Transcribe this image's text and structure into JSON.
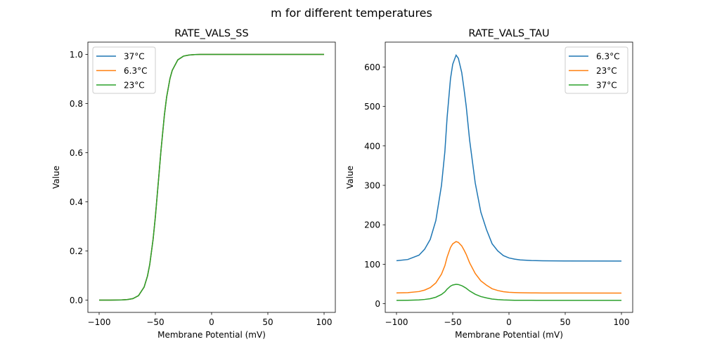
{
  "suptitle": "m for different temperatures",
  "colors": {
    "c0": "#1f77b4",
    "c1": "#ff7f0e",
    "c2": "#2ca02c"
  },
  "chart_data": [
    {
      "type": "line",
      "title": "RATE_VALS_SS",
      "xlabel": "Membrane Potential (mV)",
      "ylabel": "Value",
      "xlim": [
        -110,
        110
      ],
      "ylim": [
        -0.05,
        1.05
      ],
      "xticks": [
        -100,
        -50,
        0,
        50,
        100
      ],
      "yticks": [
        0.0,
        0.2,
        0.4,
        0.6,
        0.8,
        1.0
      ],
      "ytick_labels": [
        "0.0",
        "0.2",
        "0.4",
        "0.6",
        "0.8",
        "1.0"
      ],
      "grid": false,
      "legend_placement": "upper left",
      "x": [
        -100,
        -90,
        -80,
        -75,
        -70,
        -65,
        -60,
        -57,
        -55,
        -52,
        -50,
        -47,
        -45,
        -42,
        -40,
        -37,
        -35,
        -30,
        -25,
        -20,
        -15,
        -10,
        0,
        50,
        100
      ],
      "series": [
        {
          "name": "37°C",
          "color": "#1f77b4",
          "values": [
            0,
            0.0001,
            0.0007,
            0.002,
            0.006,
            0.018,
            0.053,
            0.098,
            0.145,
            0.248,
            0.339,
            0.5,
            0.609,
            0.752,
            0.826,
            0.902,
            0.935,
            0.978,
            0.993,
            0.9975,
            0.9992,
            0.9999,
            1,
            1,
            1
          ]
        },
        {
          "name": "6.3°C",
          "color": "#ff7f0e",
          "values": [
            0,
            0.0001,
            0.0007,
            0.002,
            0.006,
            0.018,
            0.053,
            0.098,
            0.145,
            0.248,
            0.339,
            0.5,
            0.609,
            0.752,
            0.826,
            0.902,
            0.935,
            0.978,
            0.993,
            0.9975,
            0.9992,
            0.9999,
            1,
            1,
            1
          ]
        },
        {
          "name": "23°C",
          "color": "#2ca02c",
          "values": [
            0,
            0.0001,
            0.0007,
            0.002,
            0.006,
            0.018,
            0.053,
            0.098,
            0.145,
            0.248,
            0.339,
            0.5,
            0.609,
            0.752,
            0.826,
            0.902,
            0.935,
            0.978,
            0.993,
            0.9975,
            0.9992,
            0.9999,
            1,
            1,
            1
          ]
        }
      ]
    },
    {
      "type": "line",
      "title": "RATE_VALS_TAU",
      "xlabel": "Membrane Potential (mV)",
      "ylabel": "Value",
      "xlim": [
        -110,
        110
      ],
      "ylim": [
        -22,
        663
      ],
      "xticks": [
        -100,
        -50,
        0,
        50,
        100
      ],
      "yticks": [
        0,
        100,
        200,
        300,
        400,
        500,
        600
      ],
      "ytick_labels": [
        "0",
        "100",
        "200",
        "300",
        "400",
        "500",
        "600"
      ],
      "grid": false,
      "legend_placement": "upper right",
      "x": [
        -100,
        -90,
        -80,
        -75,
        -70,
        -65,
        -60,
        -57,
        -55,
        -52,
        -50,
        -47,
        -45,
        -42,
        -40,
        -38,
        -35,
        -30,
        -25,
        -20,
        -15,
        -10,
        -5,
        0,
        5,
        10,
        20,
        30,
        50,
        100
      ],
      "series": [
        {
          "name": "6.3°C",
          "color": "#1f77b4",
          "values": [
            109,
            112,
            123,
            138,
            163,
            211,
            300,
            385,
            472,
            570,
            607,
            630,
            622,
            586,
            545,
            500,
            415,
            306,
            232,
            188,
            152,
            134,
            122,
            116,
            113,
            111,
            109.5,
            108.8,
            108.3,
            108
          ]
        },
        {
          "name": "23°C",
          "color": "#ff7f0e",
          "values": [
            27.3,
            28,
            30.8,
            34.5,
            40.8,
            52.8,
            75,
            96.3,
            118,
            142.5,
            151.8,
            157.5,
            155.5,
            146.5,
            136.3,
            125,
            103.8,
            76.5,
            58,
            47,
            38,
            33.5,
            30.5,
            29,
            28.3,
            27.8,
            27.4,
            27.2,
            27.1,
            27
          ]
        },
        {
          "name": "37°C",
          "color": "#2ca02c",
          "values": [
            8.5,
            8.8,
            9.6,
            10.8,
            12.7,
            16.5,
            23.4,
            30.1,
            36.9,
            44.5,
            47.4,
            49.2,
            48.6,
            45.8,
            42.6,
            39.1,
            32.4,
            23.9,
            18.1,
            14.7,
            11.9,
            10.5,
            9.5,
            9.1,
            8.8,
            8.7,
            8.6,
            8.5,
            8.5,
            8.4
          ]
        }
      ]
    }
  ]
}
